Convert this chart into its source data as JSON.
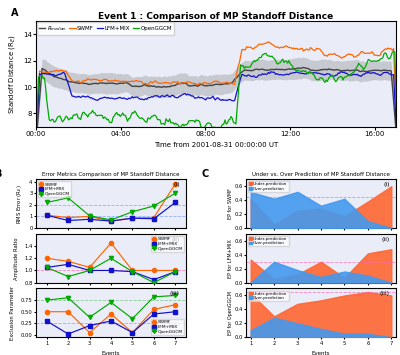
{
  "title_A": "Event 1 : Comparison of MP Standoff Distance",
  "xlabel_A": "Time from 2001-08-31 00:00:00 UT",
  "ylabel_A": "Standoff Distance (R$_E$)",
  "xticks_A": [
    "00:00",
    "04:00",
    "08:00",
    "12:00",
    "16:00"
  ],
  "yticks_A": [
    8,
    10,
    12,
    14
  ],
  "time_points": 300,
  "rmedian_color": "#444444",
  "swmf_color": "#FF6600",
  "lfmmix_color": "#1111CC",
  "openggcm_color": "#00AA00",
  "title_B": "Error Metrics Comparison of MP Standoff Distance",
  "title_C": "Under vs. Over Prediction of MP Standoff Distance",
  "events": [
    1,
    2,
    3,
    4,
    5,
    6,
    7
  ],
  "rms_swmf": [
    1.1,
    0.9,
    1.0,
    0.6,
    0.85,
    0.9,
    3.8
  ],
  "rms_lfmmix": [
    1.1,
    0.65,
    0.75,
    0.6,
    0.85,
    0.8,
    2.2
  ],
  "rms_openggcm": [
    2.2,
    2.6,
    1.05,
    0.7,
    1.4,
    1.9,
    3.0
  ],
  "amp_swmf": [
    1.2,
    1.15,
    1.05,
    1.45,
    1.0,
    1.0,
    1.0
  ],
  "amp_lfmmix": [
    1.05,
    1.1,
    1.0,
    1.0,
    0.98,
    0.85,
    0.98
  ],
  "amp_openggcm": [
    1.05,
    0.9,
    1.0,
    1.2,
    0.98,
    0.8,
    0.98
  ],
  "exc_swmf": [
    0.5,
    0.5,
    0.05,
    0.45,
    0.05,
    0.55,
    0.65
  ],
  "exc_lfmmix": [
    0.3,
    0.02,
    0.2,
    0.3,
    0.05,
    0.45,
    0.5
  ],
  "exc_openggcm": [
    0.75,
    0.8,
    0.38,
    0.7,
    0.35,
    0.82,
    0.85
  ],
  "ep_swmf_under": [
    0.42,
    0.05,
    0.25,
    0.28,
    0.17,
    0.38,
    0.6
  ],
  "ep_swmf_over": [
    0.52,
    0.42,
    0.52,
    0.32,
    0.42,
    0.1,
    0.0
  ],
  "ep_lfmmix_under": [
    0.33,
    0.05,
    0.12,
    0.3,
    0.07,
    0.42,
    0.48
  ],
  "ep_lfmmix_over": [
    0.0,
    0.3,
    0.18,
    0.08,
    0.16,
    0.1,
    0.0
  ],
  "ep_openggcm_under": [
    0.63,
    0.3,
    0.48,
    0.53,
    0.6,
    0.65,
    0.6
  ],
  "ep_openggcm_over": [
    0.1,
    0.28,
    0.2,
    0.12,
    0.05,
    0.05,
    0.0
  ],
  "bg_color": "#eaecf8",
  "under_color": "#FF6633",
  "over_color": "#4499EE",
  "dashed_color_pink": "#FF69B4",
  "dashed_color_green": "#66BB66",
  "dashed_color_blue": "#6699FF"
}
